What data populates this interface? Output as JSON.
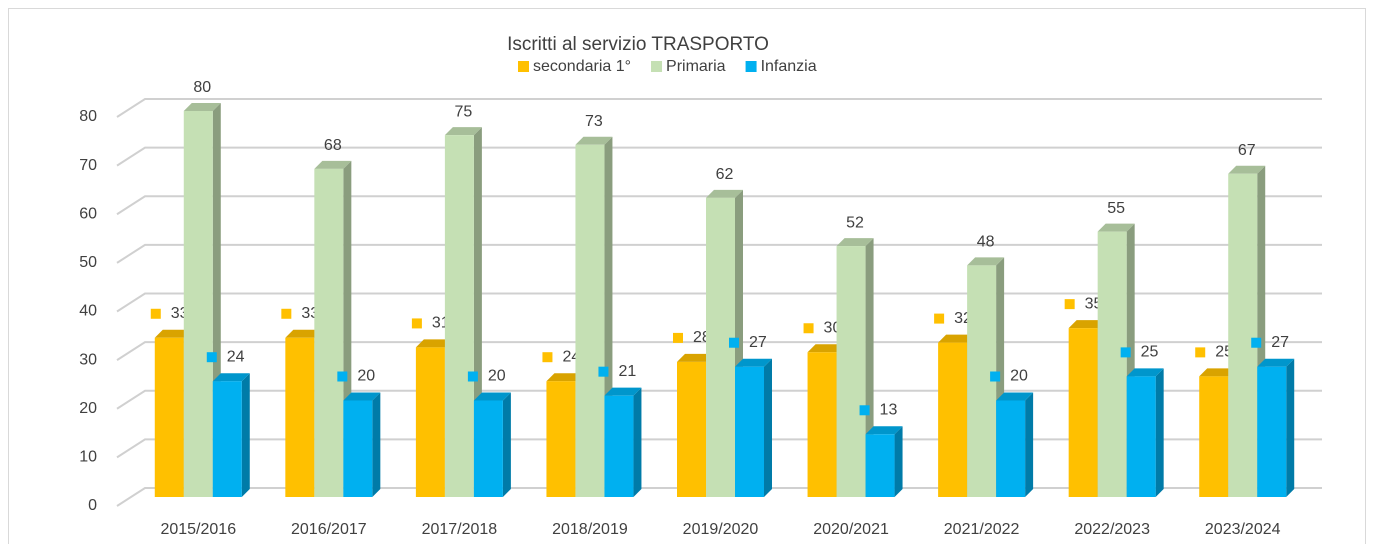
{
  "chart_data": {
    "type": "bar3d",
    "title": "Iscritti al servizio TRASPORTO",
    "categories": [
      "2015/2016",
      "2016/2017",
      "2017/2018",
      "2018/2019",
      "2019/2020",
      "2020/2021",
      "2021/2022",
      "2022/2023",
      "2023/2024"
    ],
    "series": [
      {
        "name": "secondaria 1°",
        "color": "#FFC000",
        "values": [
          33,
          33,
          31,
          24,
          28,
          30,
          32,
          35,
          25
        ]
      },
      {
        "name": "Primaria",
        "color": "#C5E0B4",
        "values": [
          80,
          68,
          75,
          73,
          62,
          52,
          48,
          55,
          67
        ]
      },
      {
        "name": "Infanzia",
        "color": "#00B0F0",
        "values": [
          24,
          20,
          20,
          21,
          27,
          13,
          20,
          25,
          27
        ]
      }
    ],
    "ylim": [
      0,
      80
    ],
    "yticks": [
      0,
      10,
      20,
      30,
      40,
      50,
      60,
      70,
      80
    ],
    "grid": true
  }
}
